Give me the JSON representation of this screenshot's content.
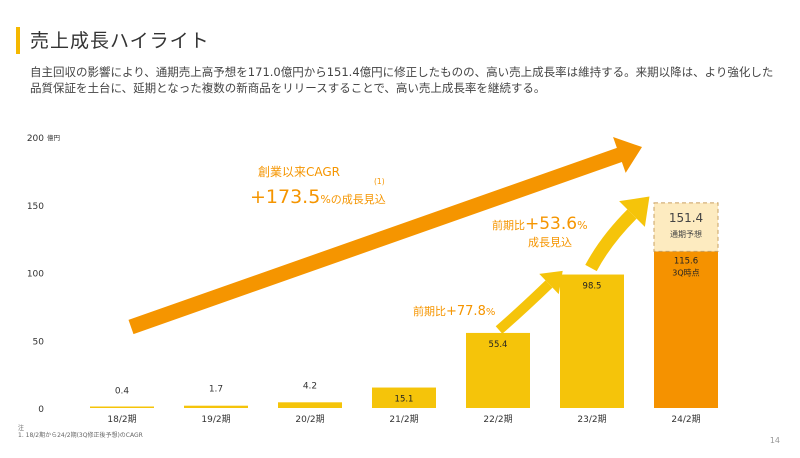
{
  "slide": {
    "title": "売上成長ハイライト",
    "lead": "自主回収の影響により、通期売上高予想を171.0億円から151.4億円に修正したものの、高い売上成長率は維持する。来期以降は、より強化した品質保証を土台に、延期となった複数の新商品をリリースすることで、高い売上成長率を継続する。",
    "footnote_head": "注",
    "footnote": "1. 18/2期から24/2期(3Q修正後予想)のCAGR",
    "page_number": "14"
  },
  "colors": {
    "accent": "#f5b800",
    "bar_light": "#f5c40a",
    "bar_dark": "#f0a200",
    "bar_orange": "#f59200",
    "arrow": "#f59500",
    "forecast_fill": "#fdebc0",
    "forecast_border": "#c9a060"
  },
  "annotations": {
    "cagr_title": "創業以来CAGR",
    "cagr_note": "(1)",
    "cagr_value": "+173.5",
    "cagr_unit": "%の成長見込",
    "yoy1_prefix": "前期比",
    "yoy1_value": "+77.8",
    "yoy1_unit": "%",
    "yoy2_prefix": "前期比",
    "yoy2_value": "+53.6",
    "yoy2_unit": "%",
    "yoy2_sub": "成長見込",
    "forecast_value": "151.4",
    "forecast_label": "通期予想",
    "q3_value": "115.6",
    "q3_label": "3Q時点"
  },
  "chart_data": {
    "type": "bar",
    "title": "",
    "ylabel_unit": "億円",
    "ylim": [
      0,
      200
    ],
    "yticks": [
      0,
      50,
      100,
      150,
      200
    ],
    "categories": [
      "18/2期",
      "19/2期",
      "20/2期",
      "21/2期",
      "22/2期",
      "23/2期",
      "24/2期"
    ],
    "values": [
      0.4,
      1.7,
      4.2,
      15.1,
      55.4,
      98.5,
      115.6
    ],
    "value_labels": [
      "0.4",
      "1.7",
      "4.2",
      "15.1",
      "55.4",
      "98.5",
      "115.6"
    ],
    "forecast": {
      "category": "24/2期",
      "value": 151.4
    },
    "grid": false
  }
}
